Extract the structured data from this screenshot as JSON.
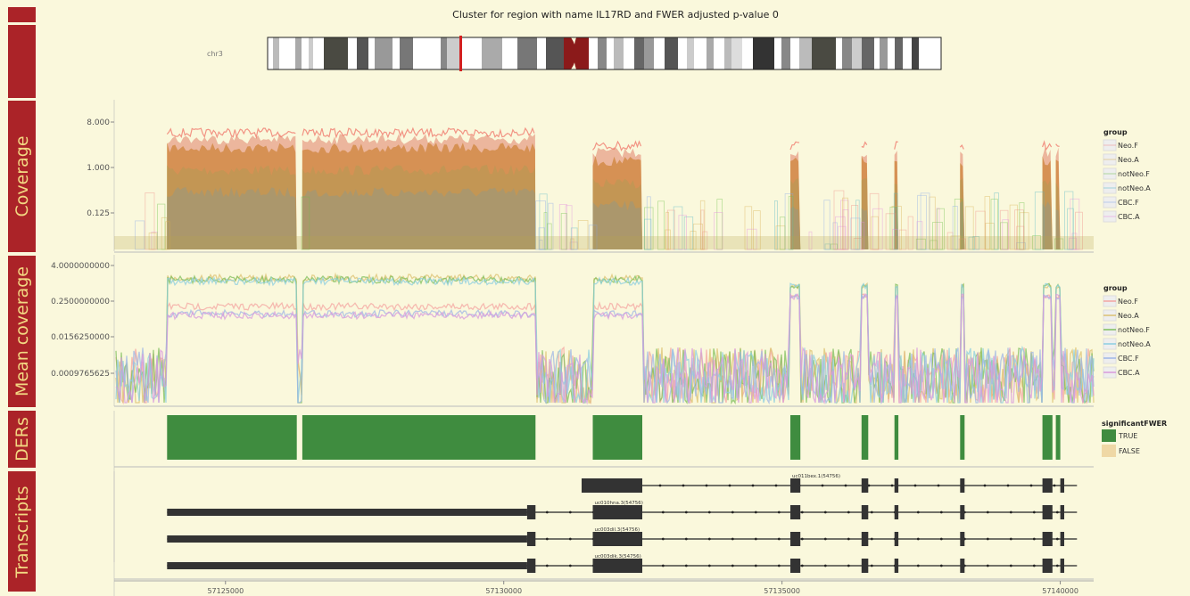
{
  "title": "Cluster for region with name IL17RD and FWER adjusted p-value 0",
  "side_labels": [
    "Coverage",
    "Mean coverage",
    "DERs",
    "Transcripts"
  ],
  "ideogram": {
    "chromosome": "chr3"
  },
  "chart_data": [
    {
      "type": "area",
      "panel": "Coverage",
      "ylabel": "Coverage",
      "y_ticks": [
        "8.000",
        "1.000",
        "0.125"
      ],
      "y_scale": "log2",
      "legend": {
        "title": "group",
        "entries": [
          "Neo.F",
          "Neo.A",
          "notNeo.F",
          "notNeo.A",
          "CBC.F",
          "CBC.A"
        ],
        "placement": "right"
      }
    },
    {
      "type": "line",
      "panel": "Mean coverage",
      "ylabel": "Mean coverage",
      "y_ticks": [
        "4.0000000000",
        "0.2500000000",
        "0.0156250000",
        "0.0009765625"
      ],
      "y_scale": "log2",
      "legend": {
        "title": "group",
        "entries": [
          "Neo.F",
          "Neo.A",
          "notNeo.F",
          "notNeo.A",
          "CBC.F",
          "CBC.A"
        ],
        "placement": "right"
      }
    },
    {
      "type": "bar",
      "panel": "DERs",
      "ylabel": "DERs",
      "regions": [
        [
          57123950,
          57126280
        ],
        [
          57126380,
          57130570
        ],
        [
          57131600,
          57132490
        ],
        [
          57135150,
          57135330
        ],
        [
          57136430,
          57136550
        ],
        [
          57137020,
          57137090
        ],
        [
          57138200,
          57138280
        ],
        [
          57139680,
          57139860
        ],
        [
          57139920,
          57140000
        ]
      ],
      "legend": {
        "title": "significantFWER",
        "entries": [
          {
            "label": "TRUE",
            "color": "#3f8c3f"
          },
          {
            "label": "FALSE",
            "color": "#efd8a5"
          }
        ],
        "placement": "right"
      }
    },
    {
      "type": "table",
      "panel": "Transcripts",
      "ylabel": "Transcripts",
      "transcripts": [
        {
          "label": "uc011bex.1(54756)",
          "start": 57131400,
          "end": 57140300,
          "exons": [
            [
              57131400,
              57132490
            ],
            [
              57135150,
              57135330
            ],
            [
              57136430,
              57136550
            ],
            [
              57137020,
              57137090
            ],
            [
              57138200,
              57138280
            ],
            [
              57139680,
              57139860
            ],
            [
              57140000,
              57140070
            ]
          ]
        },
        {
          "label": "uc010hna.3(54756)",
          "start": 57123950,
          "end": 57140300,
          "exons": [
            [
              57123950,
              57130420
            ],
            [
              57130420,
              57130570
            ],
            [
              57131600,
              57132490
            ],
            [
              57135150,
              57135330
            ],
            [
              57136430,
              57136550
            ],
            [
              57137020,
              57137090
            ],
            [
              57138200,
              57138280
            ],
            [
              57139680,
              57139860
            ],
            [
              57140000,
              57140070
            ]
          ]
        },
        {
          "label": "uc003dil.3(54756)",
          "start": 57123950,
          "end": 57140300,
          "exons": [
            [
              57123950,
              57130420
            ],
            [
              57130420,
              57130570
            ],
            [
              57131600,
              57132490
            ],
            [
              57135150,
              57135330
            ],
            [
              57136430,
              57136550
            ],
            [
              57137020,
              57137090
            ],
            [
              57138200,
              57138280
            ],
            [
              57139680,
              57139860
            ],
            [
              57140000,
              57140070
            ]
          ]
        },
        {
          "label": "uc003dik.3(54756)",
          "start": 57123950,
          "end": 57140300,
          "exons": [
            [
              57123950,
              57130420
            ],
            [
              57130420,
              57130570
            ],
            [
              57131600,
              57132490
            ],
            [
              57135150,
              57135330
            ],
            [
              57136430,
              57136550
            ],
            [
              57137020,
              57137090
            ],
            [
              57138200,
              57138280
            ],
            [
              57139680,
              57139860
            ],
            [
              57140000,
              57140070
            ]
          ]
        }
      ]
    }
  ],
  "x_axis": {
    "ticks": [
      57125000,
      57130000,
      57135000,
      57140000
    ],
    "tick_labels": [
      "57125000",
      "57130000",
      "57135000",
      "57140000"
    ],
    "xlim": [
      57123000,
      57140600
    ]
  },
  "group_colors": {
    "Neo.F": "#f08a85",
    "Neo.A": "#d6b04d",
    "notNeo.F": "#6cc04a",
    "notNeo.A": "#52b7c5",
    "CBC.F": "#86a8e8",
    "CBC.A": "#e38ae0"
  },
  "group_colors_mean": {
    "Neo.F": "#f4a5a1",
    "Neo.A": "#dcc170",
    "notNeo.F": "#7fbf5c",
    "notNeo.A": "#8ccfe0",
    "CBC.F": "#9fb7e6",
    "CBC.A": "#d899dc"
  }
}
